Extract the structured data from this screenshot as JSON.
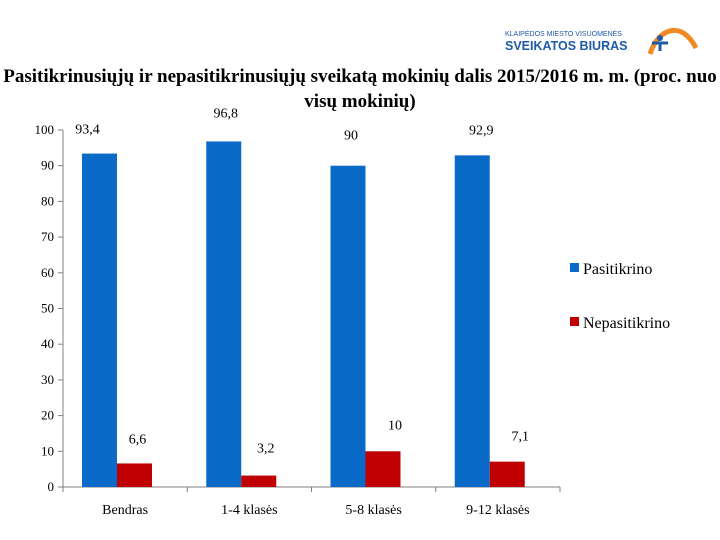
{
  "logo": {
    "line1": "KLAIPĖDOS MIESTO VISUOMENĖS",
    "line2": "SVEIKATOS BIURAS"
  },
  "chart_data": {
    "type": "bar",
    "title": "Pasitikrinusiųjų ir nepasitikrinusiųjų sveikatą mokinių dalis 2015/2016 m. m. (proc. nuo visų mokinių)",
    "categories": [
      "Bendras",
      "1-4 klasės",
      "5-8 klasės",
      "9-12 klasės"
    ],
    "series": [
      {
        "name": "Pasitikrino",
        "color": "#0A6AC8",
        "values": [
          93.4,
          96.8,
          90,
          92.9
        ],
        "labels": [
          "93,4",
          "96,8",
          "90",
          "92,9"
        ]
      },
      {
        "name": "Nepasitikrino",
        "color": "#C00000",
        "values": [
          6.6,
          3.2,
          10,
          7.1
        ],
        "labels": [
          "6,6",
          "3,2",
          "10",
          "7,1"
        ]
      }
    ],
    "ylim": [
      0,
      100
    ],
    "yticks": [
      0,
      10,
      20,
      30,
      40,
      50,
      60,
      70,
      80,
      90,
      100
    ],
    "grid": false,
    "legend": "right"
  }
}
